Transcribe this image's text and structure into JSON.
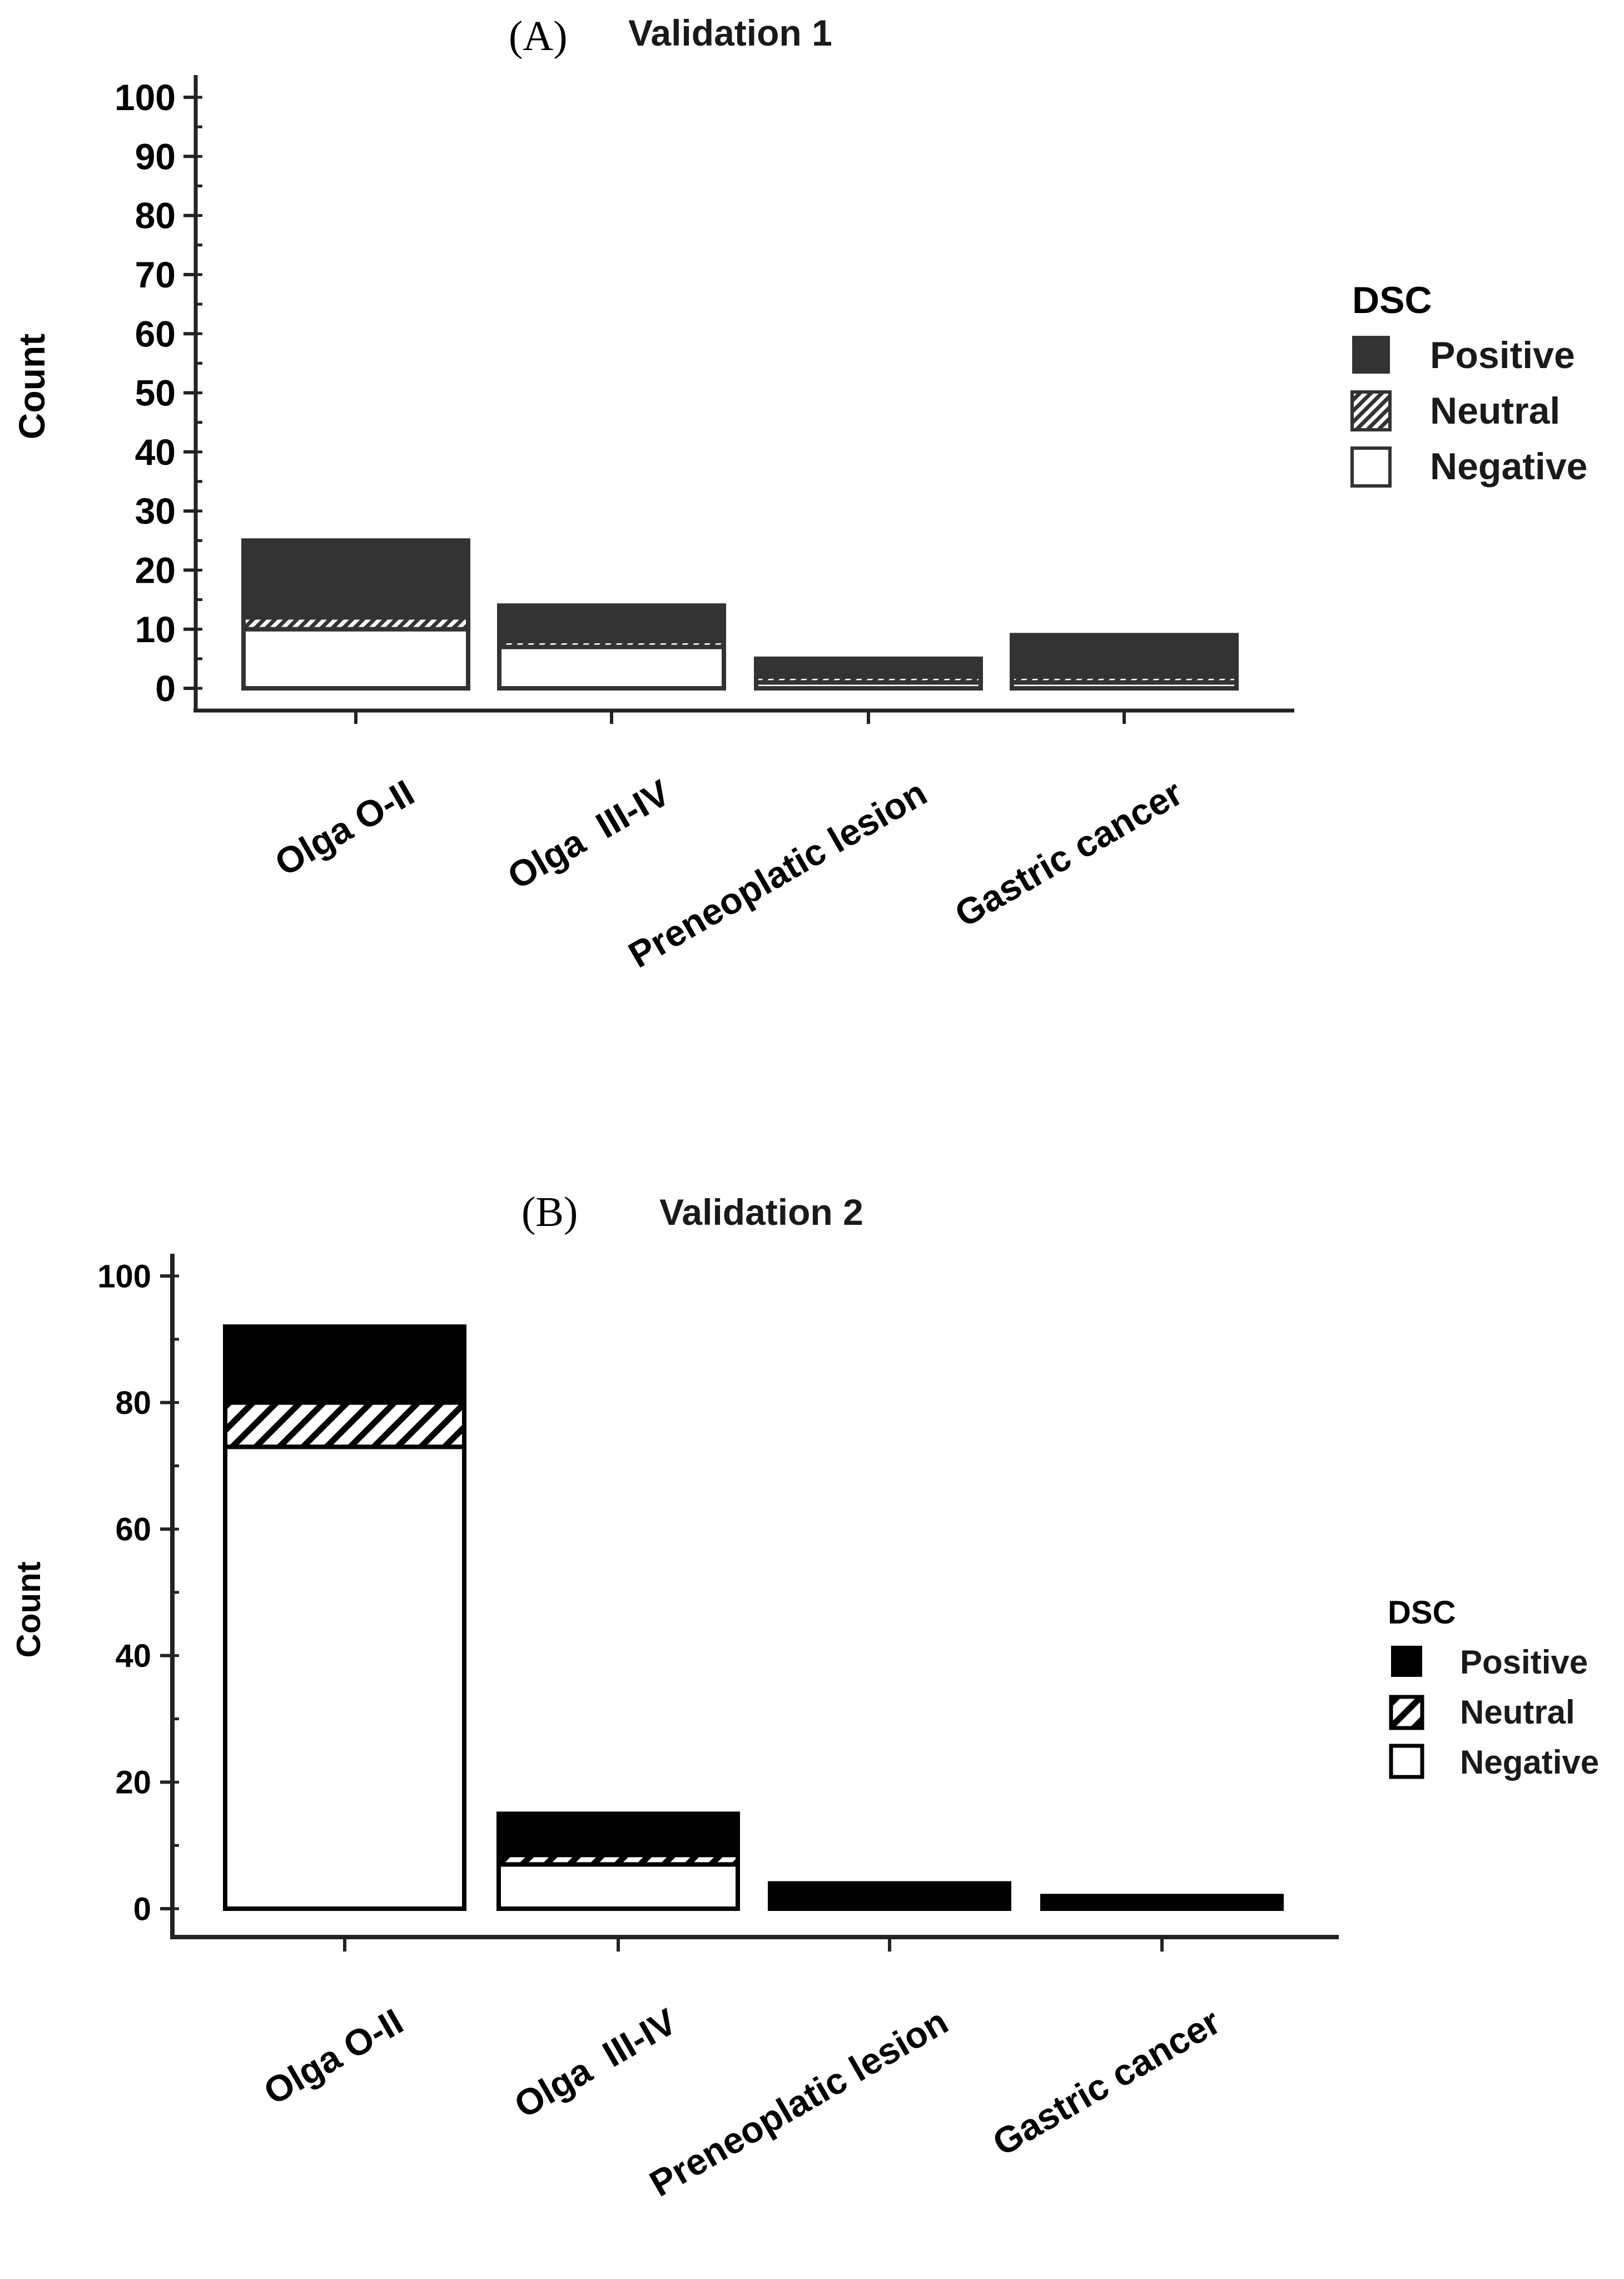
{
  "chart_data": [
    {
      "type": "bar",
      "panel_label": "(A)",
      "title": "Validation 1",
      "xlabel": "",
      "ylabel": "Count",
      "ylim": [
        0,
        100
      ],
      "yticks": [
        "0",
        "10",
        "20",
        "30",
        "40",
        "50",
        "60",
        "70",
        "80",
        "90",
        "100"
      ],
      "categories": [
        "Olga O-II",
        "Olga  III-IV",
        "Preneoplatic lesion",
        "Gastric cancer"
      ],
      "series": [
        {
          "name": "Negative",
          "values": [
            10,
            7,
            1,
            1
          ]
        },
        {
          "name": "Neutral",
          "values": [
            2,
            1,
            1,
            1
          ]
        },
        {
          "name": "Positive",
          "values": [
            13,
            6,
            3,
            7
          ]
        }
      ],
      "legend": {
        "title": "DSC",
        "position": "right",
        "entries": [
          "Positive",
          "Neutral",
          "Negative"
        ]
      },
      "colors": {
        "positive": "#333333",
        "neutral_hatch": "#333333",
        "negative": "#ffffff"
      }
    },
    {
      "type": "bar",
      "panel_label": "(B)",
      "title": "Validation 2",
      "xlabel": "",
      "ylabel": "Count",
      "ylim": [
        0,
        100
      ],
      "yticks": [
        "0",
        "20",
        "40",
        "60",
        "80",
        "100"
      ],
      "categories": [
        "Olga O-II",
        "Olga  III-IV",
        "Preneoplatic lesion",
        "Gastric cancer"
      ],
      "series": [
        {
          "name": "Negative",
          "values": [
            73,
            7,
            0,
            0
          ]
        },
        {
          "name": "Neutral",
          "values": [
            7,
            1.5,
            0,
            0
          ]
        },
        {
          "name": "Positive",
          "values": [
            12,
            6.5,
            4,
            2
          ]
        }
      ],
      "legend": {
        "title": "DSC",
        "position": "right",
        "entries": [
          "Positive",
          "Neutral",
          "Negative"
        ]
      },
      "colors": {
        "positive": "#000000",
        "neutral_hatch": "#000000",
        "negative": "#ffffff"
      }
    }
  ]
}
